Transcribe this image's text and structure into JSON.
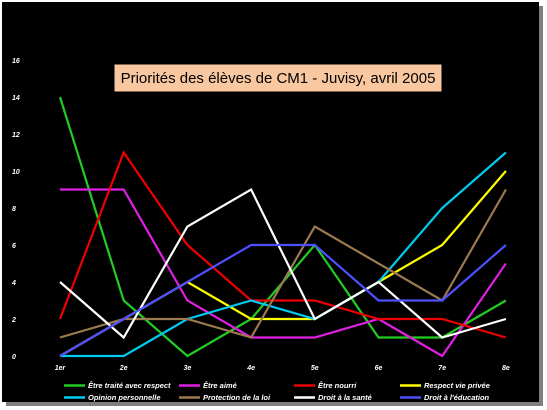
{
  "chart_data": {
    "type": "line",
    "title": "Priorités des élèves de CM1 - Juvisy, avril 2005",
    "categories": [
      "1er",
      "2e",
      "3e",
      "4e",
      "5e",
      "6e",
      "7e",
      "8e"
    ],
    "ylim": [
      0,
      16
    ],
    "yticks": [
      "0",
      "2",
      "4",
      "6",
      "8",
      "10",
      "12",
      "14",
      "16"
    ],
    "grid": false,
    "legend_position": "bottom",
    "series": [
      {
        "name": "Être traité avec respect",
        "color": "#22cc22",
        "values": [
          14,
          3,
          0,
          2,
          6,
          1,
          1,
          3
        ]
      },
      {
        "name": "Être aimé",
        "color": "#e020e0",
        "values": [
          9,
          9,
          3,
          1,
          1,
          2,
          0,
          5
        ]
      },
      {
        "name": "Être nourri",
        "color": "#ee0000",
        "values": [
          2,
          11,
          6,
          3,
          3,
          2,
          2,
          1
        ]
      },
      {
        "name": "Respect vie privée",
        "color": "#ffff00",
        "values": [
          0,
          2,
          4,
          2,
          2,
          4,
          6,
          10
        ]
      },
      {
        "name": "Opinion personnelle",
        "color": "#00ccee",
        "values": [
          0,
          0,
          2,
          3,
          2,
          4,
          8,
          11
        ]
      },
      {
        "name": "Protection de la loi",
        "color": "#9c7a4f",
        "values": [
          1,
          2,
          2,
          1,
          7,
          5,
          3,
          9
        ]
      },
      {
        "name": "Droit à la santé",
        "color": "#ffffff",
        "values": [
          4,
          1,
          7,
          9,
          2,
          4,
          1,
          2
        ]
      },
      {
        "name": "Droit à  l'éducation",
        "color": "#4f4fff",
        "values": [
          0,
          2,
          4,
          6,
          6,
          3,
          3,
          6
        ]
      }
    ]
  }
}
